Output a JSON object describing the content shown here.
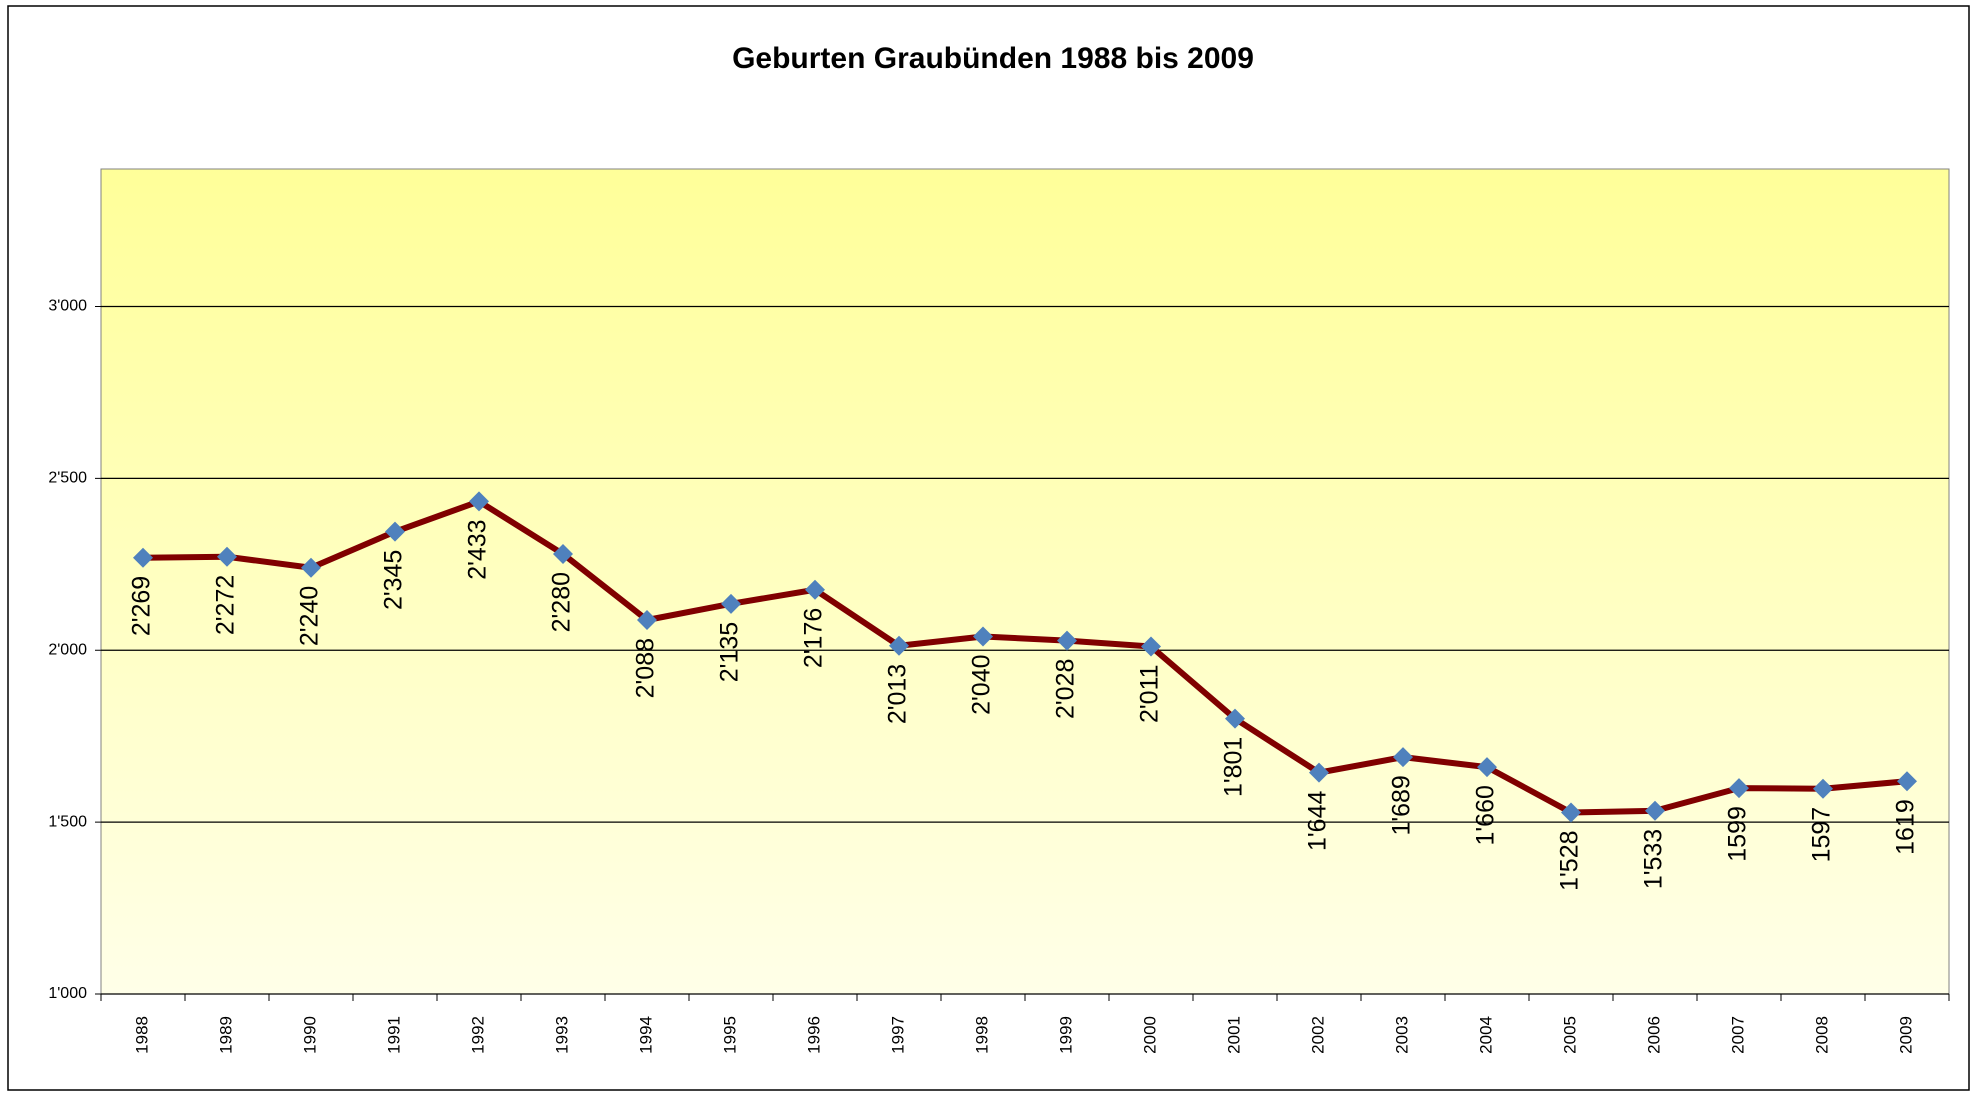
{
  "chart_data": {
    "type": "line",
    "title": "Geburten Graubünden 1988 bis 2009",
    "categories": [
      "1988",
      "1989",
      "1990",
      "1991",
      "1992",
      "1993",
      "1994",
      "1995",
      "1996",
      "1997",
      "1998",
      "1999",
      "2000",
      "2001",
      "2002",
      "2003",
      "2004",
      "2005",
      "2006",
      "2007",
      "2008",
      "2009"
    ],
    "values": [
      2269,
      2272,
      2240,
      2345,
      2433,
      2280,
      2088,
      2135,
      2176,
      2013,
      2040,
      2028,
      2011,
      1801,
      1644,
      1689,
      1660,
      1528,
      1533,
      1599,
      1597,
      1619
    ],
    "value_labels": [
      "2'269",
      "2'272",
      "2'240",
      "2'345",
      "2'433",
      "2'280",
      "2'088",
      "2'135",
      "2'176",
      "2'013",
      "2'040",
      "2'028",
      "2'011",
      "1'801",
      "1'644",
      "1'689",
      "1'660",
      "1'528",
      "1'533",
      "1599",
      "1597",
      "1619"
    ],
    "color": "#800000",
    "marker_color": "#4f81bd",
    "ylim": [
      1000,
      3400
    ],
    "yticks": [
      {
        "value": 1000,
        "label": "1'000"
      },
      {
        "value": 1500,
        "label": "1'500"
      },
      {
        "value": 2000,
        "label": "2'000"
      },
      {
        "value": 2500,
        "label": "2'500"
      },
      {
        "value": 3000,
        "label": "3'000"
      }
    ],
    "grid": true
  }
}
